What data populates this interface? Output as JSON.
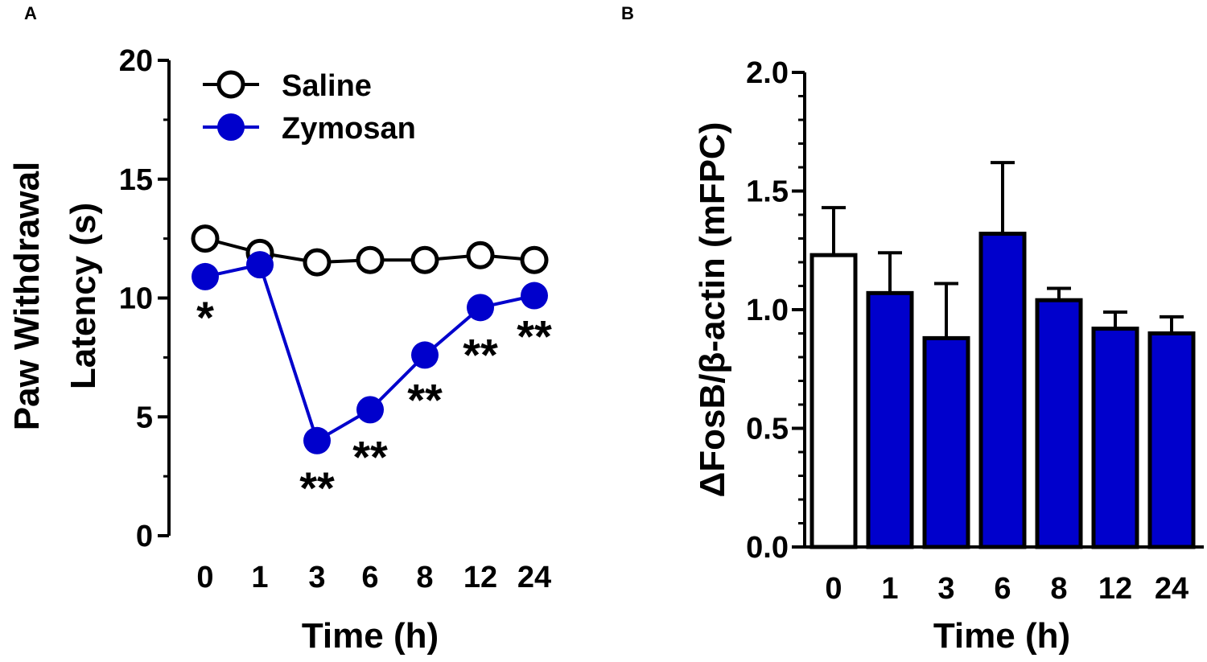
{
  "chart_data": [
    {
      "panel": "A",
      "type": "line",
      "xlabel": "Time (h)",
      "ylabel_line1": "Paw Withdrawal",
      "ylabel_line2": "Latency (s)",
      "ylim": [
        0,
        20
      ],
      "yticks": [
        "0",
        "5",
        "10",
        "15",
        "20"
      ],
      "categories": [
        "0",
        "1",
        "3",
        "6",
        "8",
        "12",
        "24"
      ],
      "series": [
        {
          "name": "Saline",
          "marker": "open-circle",
          "color": "#000000",
          "values": [
            12.5,
            11.9,
            11.5,
            11.6,
            11.6,
            11.8,
            11.6
          ]
        },
        {
          "name": "Zymosan",
          "marker": "filled-circle",
          "color": "#0000CC",
          "values": [
            10.9,
            11.4,
            4.0,
            5.3,
            7.6,
            9.6,
            10.1
          ]
        }
      ],
      "significance": [
        "*",
        "",
        "**",
        "**",
        "**",
        "**",
        "**"
      ]
    },
    {
      "panel": "B",
      "type": "bar",
      "xlabel": "Time (h)",
      "ylabel": "ΔFosB/β-actin (mFPC)",
      "ylim": [
        0,
        2.0
      ],
      "yticks": [
        "0.0",
        "0.5",
        "1.0",
        "1.5",
        "2.0"
      ],
      "categories": [
        "0",
        "1",
        "3",
        "6",
        "8",
        "12",
        "24"
      ],
      "values": [
        1.23,
        1.07,
        0.88,
        1.32,
        1.04,
        0.92,
        0.9
      ],
      "errors": [
        0.2,
        0.17,
        0.23,
        0.3,
        0.05,
        0.07,
        0.07
      ],
      "bar_colors": [
        "#FFFFFF",
        "#0000CC",
        "#0000CC",
        "#0000CC",
        "#0000CC",
        "#0000CC",
        "#0000CC"
      ]
    }
  ]
}
